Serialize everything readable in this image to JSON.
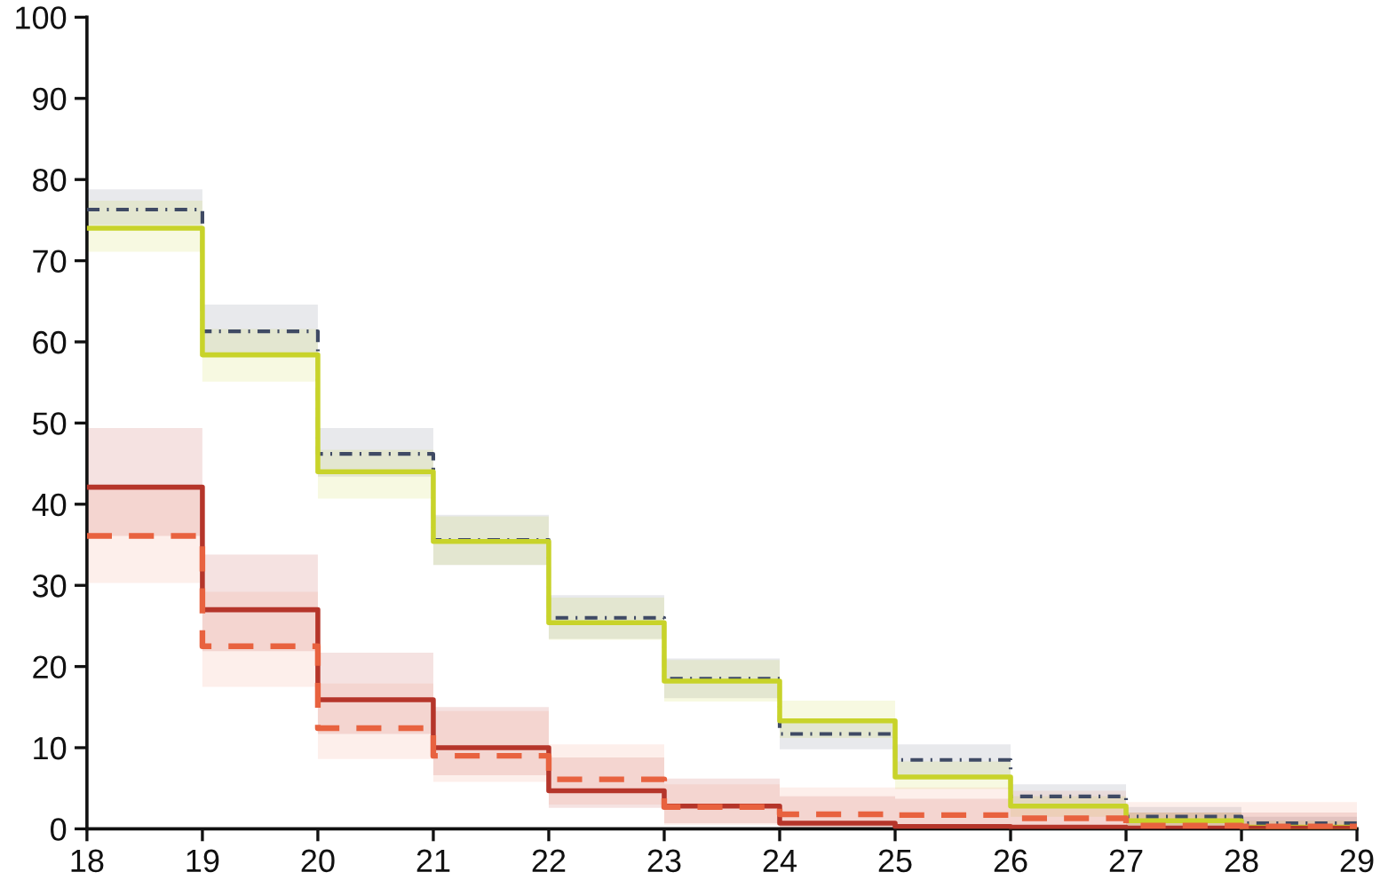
{
  "chart_data": {
    "type": "step",
    "xlim": [
      18,
      29
    ],
    "xticks": [
      18,
      19,
      20,
      21,
      22,
      23,
      24,
      25,
      26,
      27,
      28,
      29
    ],
    "ylim": [
      0,
      100
    ],
    "yticks": [
      0,
      10,
      20,
      30,
      40,
      50,
      60,
      70,
      80,
      90,
      100
    ],
    "series": [
      {
        "color": "#3f4a64",
        "line_style": "dashdot",
        "x": [
          18,
          19,
          20,
          21,
          22,
          23,
          24,
          25,
          26,
          27,
          28,
          29
        ],
        "values": [
          76.3,
          61.3,
          46.2,
          35.6,
          26.0,
          18.5,
          11.7,
          8.5,
          4.0,
          1.5,
          0.7,
          0.7
        ],
        "lower": [
          74.4,
          58.5,
          43.4,
          32.5,
          23.4,
          16.1,
          9.8,
          6.5,
          2.6,
          0.3,
          0.0,
          0.0
        ],
        "upper": [
          78.8,
          64.6,
          49.4,
          38.7,
          28.8,
          21.0,
          13.6,
          10.4,
          5.5,
          2.7,
          1.5,
          1.5
        ]
      },
      {
        "color": "#c8d32a",
        "line_style": "solid",
        "x": [
          18,
          19,
          20,
          21,
          22,
          23,
          24,
          25,
          26,
          27,
          28,
          29
        ],
        "values": [
          74.0,
          58.4,
          44.0,
          35.4,
          25.4,
          18.2,
          13.3,
          6.4,
          2.8,
          1.0,
          0.2,
          0.2
        ],
        "lower": [
          71.1,
          55.1,
          40.7,
          32.5,
          23.3,
          15.7,
          11.2,
          4.9,
          1.5,
          0.0,
          0.0,
          0.0
        ],
        "upper": [
          77.4,
          61.6,
          46.7,
          38.5,
          28.5,
          20.8,
          15.8,
          8.3,
          4.0,
          2.0,
          1.0,
          1.0
        ]
      },
      {
        "color": "#b5352a",
        "line_style": "solid",
        "x": [
          18,
          19,
          20,
          21,
          22,
          23,
          24,
          25,
          26,
          27,
          28,
          29
        ],
        "values": [
          42.1,
          27.0,
          15.9,
          10.0,
          4.7,
          2.8,
          0.7,
          0.3,
          0.2,
          0.1,
          0.1,
          0.1
        ],
        "lower": [
          36.1,
          21.9,
          11.7,
          6.6,
          2.6,
          0.7,
          0.0,
          0.0,
          0.0,
          0.0,
          0.0,
          0.0
        ],
        "upper": [
          49.4,
          33.8,
          21.7,
          15.0,
          8.8,
          6.2,
          4.0,
          3.7,
          3.0,
          2.0,
          2.0,
          2.0
        ]
      },
      {
        "color": "#e8623f",
        "line_style": "dashed",
        "x": [
          18,
          19,
          20,
          21,
          22,
          23,
          24,
          25,
          26,
          27,
          28,
          29
        ],
        "values": [
          36.1,
          22.5,
          12.4,
          9.0,
          6.1,
          2.7,
          1.8,
          1.7,
          1.3,
          0.4,
          0.3,
          0.3
        ],
        "lower": [
          30.3,
          17.5,
          8.6,
          5.8,
          3.0,
          0.5,
          0.0,
          0.0,
          0.0,
          0.0,
          0.0,
          0.0
        ],
        "upper": [
          42.3,
          29.2,
          17.9,
          14.5,
          10.4,
          5.5,
          5.1,
          5.1,
          4.7,
          3.3,
          3.3,
          3.3
        ]
      }
    ]
  }
}
